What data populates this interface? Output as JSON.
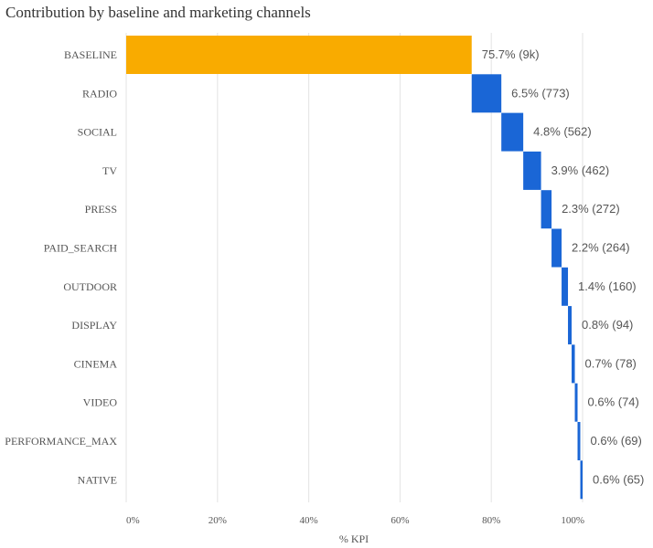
{
  "chart_data": {
    "type": "bar",
    "subtype": "waterfall-horizontal",
    "title": "Contribution by baseline and marketing channels",
    "xlabel": "% KPI",
    "ylabel": "",
    "xlim": [
      0,
      100
    ],
    "grid": true,
    "x_ticks": [
      "0%",
      "20%",
      "40%",
      "60%",
      "80%",
      "100%"
    ],
    "x_tick_values": [
      0,
      20,
      40,
      60,
      80,
      100
    ],
    "colors": {
      "baseline": "#F9AB00",
      "channel": "#1A66D6",
      "grid": "#E3E3E3"
    },
    "categories": [
      "BASELINE",
      "RADIO",
      "SOCIAL",
      "TV",
      "PRESS",
      "PAID_SEARCH",
      "OUTDOOR",
      "DISPLAY",
      "CINEMA",
      "VIDEO",
      "PERFORMANCE_MAX",
      "NATIVE"
    ],
    "values": [
      75.7,
      6.5,
      4.8,
      3.9,
      2.3,
      2.2,
      1.4,
      0.8,
      0.7,
      0.6,
      0.6,
      0.6
    ],
    "labels": [
      "75.7% (9k)",
      "6.5% (773)",
      "4.8% (562)",
      "3.9% (462)",
      "2.3% (272)",
      "2.2% (264)",
      "1.4% (160)",
      "0.8% (94)",
      "0.7% (78)",
      "0.6% (74)",
      "0.6% (69)",
      "0.6% (65)"
    ]
  }
}
